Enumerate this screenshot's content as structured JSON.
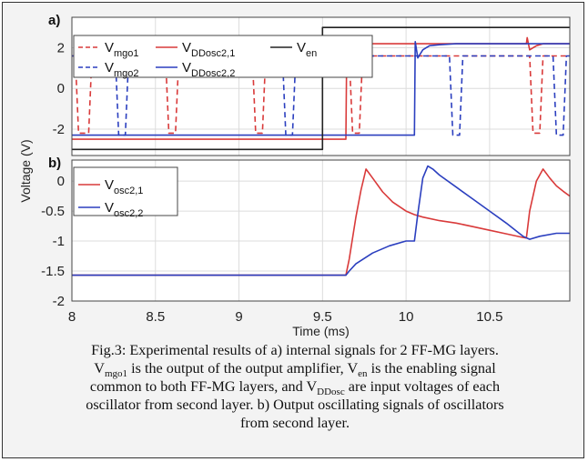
{
  "chart_data": [
    {
      "type": "line",
      "panel_label": "a)",
      "xlim": [
        8,
        10.98
      ],
      "ylim": [
        -3.3,
        3.5
      ],
      "yticks": [
        2,
        0,
        -2
      ],
      "ytick_labels": [
        "2",
        "0",
        "-2"
      ],
      "xticks": [
        8,
        8.5,
        9,
        9.5,
        10,
        10.5
      ],
      "grid": true,
      "legend_position": "top-left",
      "series": [
        {
          "name": "Vmgo1",
          "label_main": "V",
          "label_sub": "mgo1",
          "color": "#d93a3a",
          "dash": true,
          "x": [
            8.0,
            8.02,
            8.04,
            8.06,
            8.1,
            8.12,
            8.14,
            8.54,
            8.56,
            8.58,
            8.62,
            8.64,
            8.66,
            9.06,
            9.08,
            9.1,
            9.14,
            9.16,
            9.18,
            9.64,
            9.66,
            9.68,
            9.72,
            9.74,
            9.76,
            10.72,
            10.74,
            10.76,
            10.8,
            10.82,
            10.84,
            10.98
          ],
          "y": [
            1.6,
            1.6,
            -2.2,
            -2.2,
            -2.2,
            1.6,
            1.6,
            1.6,
            1.6,
            -2.2,
            -2.2,
            1.6,
            1.6,
            1.6,
            1.6,
            -2.2,
            -2.2,
            1.6,
            1.6,
            1.6,
            1.6,
            -2.2,
            -2.2,
            1.6,
            1.6,
            1.6,
            1.6,
            -2.2,
            -2.2,
            1.6,
            1.6,
            1.6
          ]
        },
        {
          "name": "Vmgo2",
          "label_main": "V",
          "label_sub": "mgo2",
          "color": "#2b3fbf",
          "dash": true,
          "x": [
            8.0,
            8.24,
            8.26,
            8.28,
            8.32,
            8.34,
            8.36,
            9.24,
            9.26,
            9.28,
            9.32,
            9.34,
            9.36,
            10.24,
            10.26,
            10.28,
            10.32,
            10.34,
            10.36,
            10.86,
            10.88,
            10.9,
            10.94,
            10.96,
            10.98
          ],
          "y": [
            1.6,
            1.6,
            1.6,
            -2.3,
            -2.3,
            1.6,
            1.6,
            1.6,
            1.6,
            -2.3,
            -2.3,
            1.6,
            1.6,
            1.6,
            1.6,
            -2.3,
            -2.3,
            1.6,
            1.6,
            1.6,
            1.6,
            -2.3,
            -2.3,
            1.6,
            1.6
          ]
        },
        {
          "name": "VDDosc2,1",
          "label_main": "V",
          "label_sub": "DDosc2,1",
          "color": "#d93a3a",
          "dash": false,
          "x": [
            8.0,
            9.64,
            9.645,
            9.66,
            9.68,
            9.7,
            9.74,
            9.8,
            9.9,
            10.72,
            10.725,
            10.74,
            10.78,
            10.82,
            10.98
          ],
          "y": [
            -2.5,
            -2.5,
            2.3,
            1.5,
            1.8,
            2.0,
            2.1,
            2.2,
            2.2,
            2.2,
            2.5,
            1.9,
            2.1,
            2.2,
            2.2
          ]
        },
        {
          "name": "VDDosc2,2",
          "label_main": "V",
          "label_sub": "DDosc2,2",
          "color": "#2b3fbf",
          "dash": false,
          "x": [
            8.0,
            10.05,
            10.055,
            10.07,
            10.1,
            10.14,
            10.2,
            10.3,
            10.98
          ],
          "y": [
            -2.3,
            -2.3,
            2.3,
            1.5,
            1.9,
            2.1,
            2.15,
            2.2,
            2.2
          ]
        },
        {
          "name": "Ven",
          "label_main": "V",
          "label_sub": "en",
          "color": "#222222",
          "dash": false,
          "x": [
            8.0,
            9.5,
            9.5,
            10.98
          ],
          "y": [
            -3.0,
            -3.0,
            3.0,
            3.0
          ]
        }
      ]
    },
    {
      "type": "line",
      "panel_label": "b)",
      "xlim": [
        8,
        10.98
      ],
      "ylim": [
        -2,
        0.35
      ],
      "yticks": [
        0,
        -0.5,
        -1,
        -1.5,
        -2
      ],
      "ytick_labels": [
        "0",
        "-0.5",
        "-1",
        "-1.5",
        "-2"
      ],
      "xticks": [
        8,
        8.5,
        9,
        9.5,
        10,
        10.5
      ],
      "xtick_labels": [
        "8",
        "8.5",
        "9",
        "9.5",
        "10",
        "10.5"
      ],
      "xlabel": "Time (ms)",
      "shared_ylabel": "Voltage (V)",
      "grid": true,
      "legend_position": "top-left",
      "series": [
        {
          "name": "Vosc2,1",
          "label_main": "V",
          "label_sub": "osc2,1",
          "color": "#d93a3a",
          "dash": false,
          "x": [
            8.0,
            9.64,
            9.66,
            9.7,
            9.73,
            9.76,
            9.8,
            9.86,
            9.92,
            10.0,
            10.05,
            10.1,
            10.2,
            10.3,
            10.4,
            10.5,
            10.6,
            10.7,
            10.72,
            10.74,
            10.78,
            10.82,
            10.86,
            10.9,
            10.94,
            10.98
          ],
          "y": [
            -1.57,
            -1.57,
            -1.3,
            -0.6,
            -0.15,
            0.2,
            0.05,
            -0.18,
            -0.35,
            -0.5,
            -0.56,
            -0.6,
            -0.66,
            -0.7,
            -0.76,
            -0.82,
            -0.88,
            -0.94,
            -0.95,
            -0.5,
            0.0,
            0.2,
            0.05,
            -0.08,
            -0.17,
            -0.25
          ]
        },
        {
          "name": "Vosc2,2",
          "label_main": "V",
          "label_sub": "osc2,2",
          "color": "#2b3fbf",
          "dash": false,
          "x": [
            8.0,
            9.64,
            9.66,
            9.7,
            9.8,
            9.9,
            10.0,
            10.05,
            10.07,
            10.1,
            10.13,
            10.16,
            10.2,
            10.3,
            10.4,
            10.5,
            10.6,
            10.7,
            10.74,
            10.8,
            10.9,
            10.98
          ],
          "y": [
            -1.57,
            -1.57,
            -1.5,
            -1.38,
            -1.2,
            -1.08,
            -1.0,
            -1.0,
            -0.55,
            0.05,
            0.25,
            0.2,
            0.1,
            -0.1,
            -0.3,
            -0.5,
            -0.7,
            -0.92,
            -0.97,
            -0.92,
            -0.87,
            -0.87
          ]
        }
      ]
    }
  ],
  "caption": {
    "line1": "Fig.3: Experimental results of a) internal signals for 2 FF-MG layers.",
    "line2_v1": "V",
    "line2_s1": "mgo1",
    "line2_t1": " is the output of the output amplifier, V",
    "line2_s2": "en",
    "line2_t2": " is the enabling signal",
    "line3_t1": "common to both FF-MG layers, and V",
    "line3_s1": "DDosc",
    "line3_t2": " are input voltages of each",
    "line4": "oscillator from second layer. b) Output oscillating signals of oscillators",
    "line5": "from second layer."
  }
}
